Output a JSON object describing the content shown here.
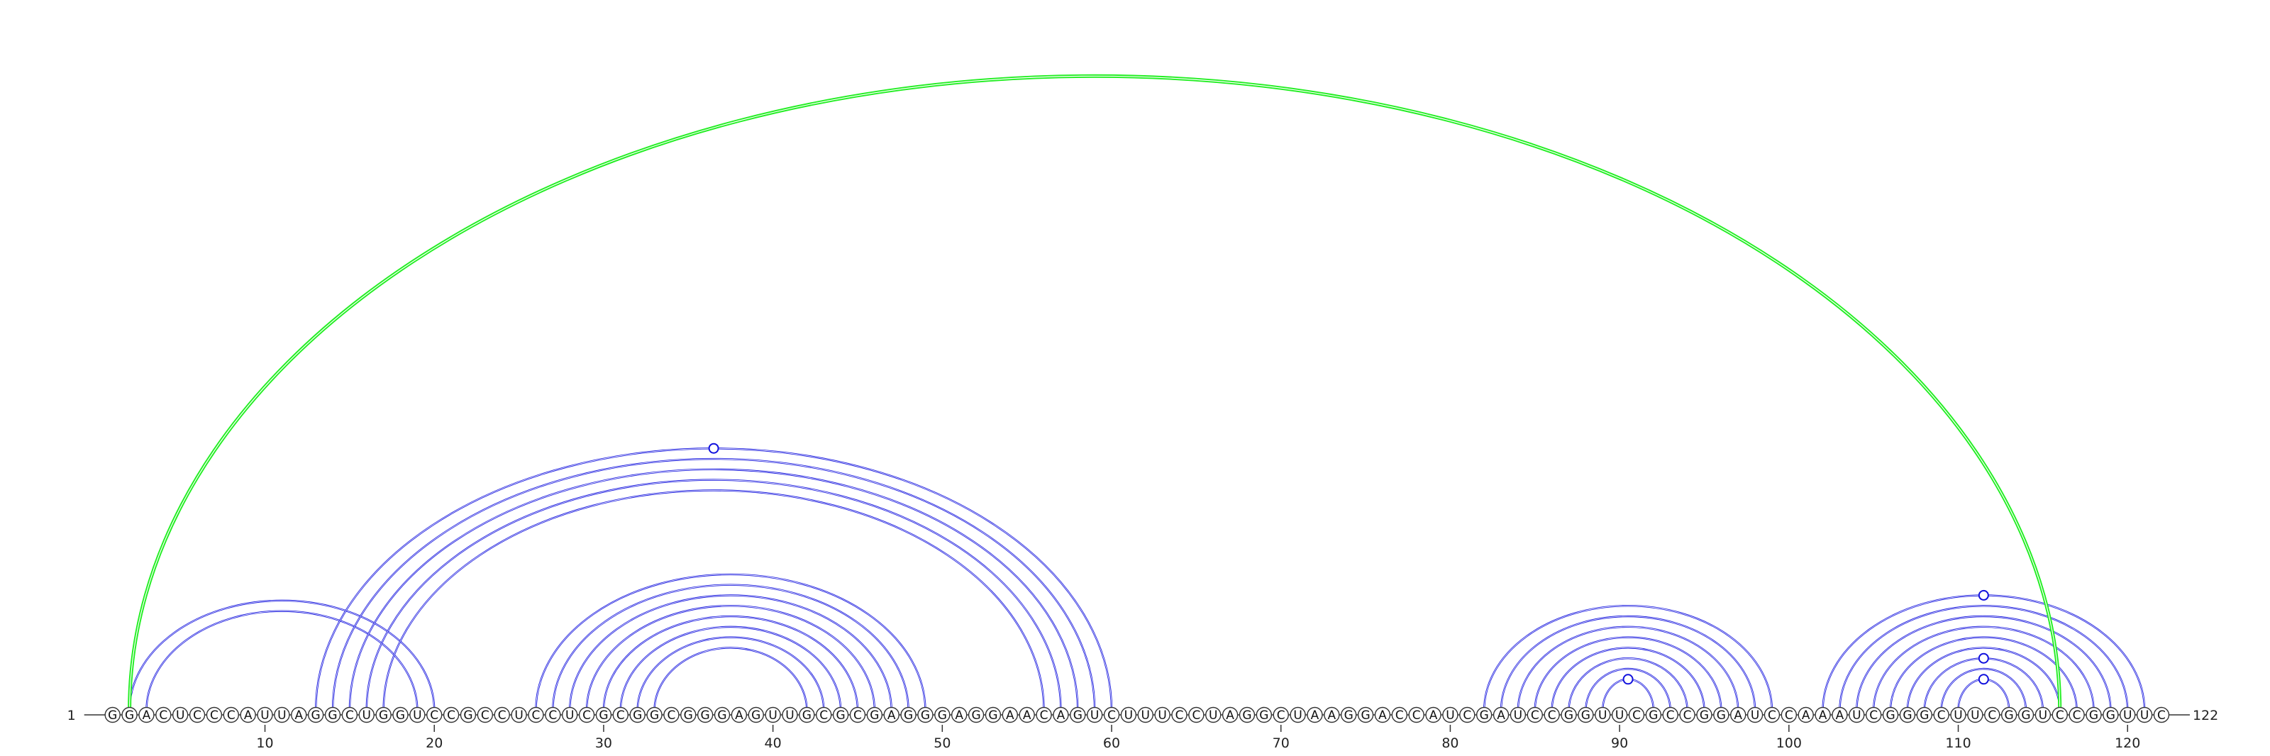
{
  "sequence": "GGACUCCCAUUAGGCUGGUCCGCCUCCUCGCGGCGGGAGUUGCGCGAGGGAGGAACAGUCUUUCCUAGGCUAAGGACCAUCGAUCCGGUUCGCCGGAUCCAAAUCGGGCUUCGGUCCGGUUC",
  "start_label": "1",
  "end_label": "122",
  "ticks": [
    "10",
    "20",
    "30",
    "40",
    "50",
    "60",
    "70",
    "80",
    "90",
    "100",
    "110",
    "120"
  ],
  "colors": {
    "structure_arc": "#1010dd",
    "pseudoknot_arc": "#22ee22",
    "text": "#111111",
    "axis": "#333333"
  },
  "helices": [
    {
      "pairs": [
        [
          2,
          20
        ],
        [
          3,
          19
        ]
      ],
      "color": "blue"
    },
    {
      "pairs": [
        [
          13,
          60
        ],
        [
          14,
          59
        ],
        [
          15,
          58
        ],
        [
          16,
          57
        ],
        [
          17,
          56
        ]
      ],
      "color": "blue"
    },
    {
      "pairs": [
        [
          26,
          49
        ],
        [
          27,
          48
        ],
        [
          28,
          47
        ],
        [
          29,
          46
        ],
        [
          30,
          45
        ],
        [
          31,
          44
        ],
        [
          32,
          43
        ],
        [
          33,
          42
        ]
      ],
      "color": "blue"
    },
    {
      "pairs": [
        [
          82,
          99
        ],
        [
          83,
          98
        ],
        [
          84,
          97
        ],
        [
          85,
          96
        ],
        [
          86,
          95
        ],
        [
          87,
          94
        ],
        [
          88,
          93
        ],
        [
          89,
          92
        ]
      ],
      "color": "blue"
    },
    {
      "pairs": [
        [
          102,
          121
        ],
        [
          103,
          120
        ],
        [
          104,
          119
        ],
        [
          105,
          118
        ],
        [
          106,
          117
        ],
        [
          107,
          116
        ],
        [
          108,
          115
        ],
        [
          109,
          114
        ],
        [
          110,
          113
        ]
      ],
      "color": "blue"
    },
    {
      "pairs": [
        [
          2,
          116
        ]
      ],
      "color": "green"
    }
  ],
  "non_canonical_markers": [
    {
      "pair": [
        13,
        60
      ]
    },
    {
      "pair": [
        89,
        92
      ]
    },
    {
      "pair": [
        102,
        121
      ]
    },
    {
      "pair": [
        108,
        115
      ]
    },
    {
      "pair": [
        110,
        113
      ]
    }
  ]
}
